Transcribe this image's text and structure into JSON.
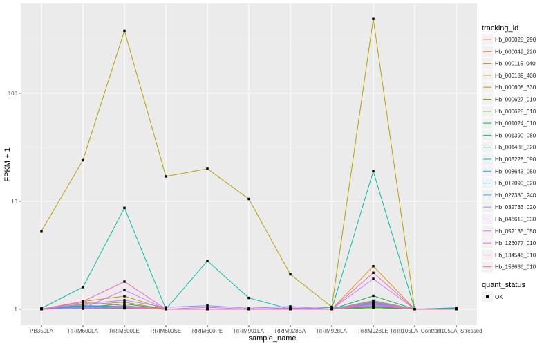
{
  "chart_data": {
    "type": "line",
    "xlabel": "sample_name",
    "ylabel": "FPKM + 1",
    "yscale": "log10",
    "ylim": [
      0.71,
      680
    ],
    "yticks": [
      1,
      10,
      100
    ],
    "ytick_labels": [
      "1",
      "10",
      "100"
    ],
    "categories": [
      "PB350LA",
      "RRIM600LA",
      "RRIM600LE",
      "RRIM600SE",
      "RRIM600PE",
      "RRIM901LA",
      "RRIM928BA",
      "RRIM928LA",
      "RRIM928LE",
      "RRII105LA_Control",
      "RRII105LA_Stressed"
    ],
    "legend_title": "tracking_id",
    "legend_position": "right",
    "shape_legend_title": "quant_status",
    "shape_legend_items": [
      "OK"
    ],
    "series": [
      {
        "name": "Hb_000028_290",
        "color": "#F8766D",
        "values": [
          1.0,
          1.05,
          1.04,
          1.0,
          1.0,
          1.0,
          1.02,
          1.0,
          1.12,
          1.0,
          1.0
        ]
      },
      {
        "name": "Hb_000049_220",
        "color": "#EA8331",
        "values": [
          1.0,
          1.1,
          1.16,
          1.0,
          1.0,
          1.0,
          1.0,
          1.0,
          1.2,
          1.0,
          1.0
        ]
      },
      {
        "name": "Hb_000115_040",
        "color": "#D89000",
        "values": [
          1.0,
          1.18,
          1.32,
          1.0,
          1.0,
          1.0,
          1.0,
          1.0,
          2.5,
          1.0,
          1.0
        ]
      },
      {
        "name": "Hb_000189_400",
        "color": "#C09B00",
        "values": [
          1.0,
          1.03,
          1.03,
          1.0,
          1.0,
          1.0,
          1.0,
          1.0,
          1.08,
          1.0,
          1.0
        ]
      },
      {
        "name": "Hb_000608_330",
        "color": "#B8A000",
        "values": [
          5.3,
          24,
          380,
          17,
          20,
          10.5,
          2.1,
          1.05,
          490,
          1.0,
          1.0
        ]
      },
      {
        "name": "Hb_000627_010",
        "color": "#7CAE00",
        "values": [
          1.0,
          1.02,
          1.02,
          1.0,
          1.0,
          1.0,
          1.0,
          1.0,
          1.04,
          1.0,
          1.0
        ]
      },
      {
        "name": "Hb_000628_010",
        "color": "#39B600",
        "values": [
          1.0,
          1.01,
          1.02,
          1.0,
          1.0,
          1.0,
          1.0,
          1.0,
          1.03,
          1.0,
          1.0
        ]
      },
      {
        "name": "Hb_001024_010",
        "color": "#00BB4E",
        "values": [
          1.0,
          1.04,
          1.12,
          1.0,
          1.0,
          1.0,
          1.0,
          1.0,
          1.33,
          1.0,
          1.0
        ]
      },
      {
        "name": "Hb_001390_080",
        "color": "#00BF7D",
        "values": [
          1.0,
          1.02,
          1.03,
          1.0,
          1.0,
          1.0,
          1.0,
          1.0,
          1.06,
          1.0,
          1.0
        ]
      },
      {
        "name": "Hb_001488_320",
        "color": "#00C1A3",
        "values": [
          1.02,
          1.6,
          8.7,
          1.0,
          2.8,
          1.27,
          1.0,
          1.0,
          19,
          1.0,
          1.03
        ]
      },
      {
        "name": "Hb_003228_090",
        "color": "#00BFC4",
        "values": [
          1.01,
          1.08,
          1.06,
          1.0,
          1.0,
          1.0,
          1.0,
          1.04,
          1.1,
          1.0,
          1.02
        ]
      },
      {
        "name": "Hb_008643_050",
        "color": "#00BAE0",
        "values": [
          1.0,
          1.06,
          1.05,
          1.0,
          1.0,
          1.0,
          1.0,
          1.0,
          1.14,
          1.0,
          1.0
        ]
      },
      {
        "name": "Hb_012090_020",
        "color": "#00B0F6",
        "values": [
          1.0,
          1.07,
          1.04,
          1.0,
          1.0,
          1.0,
          1.0,
          1.0,
          1.16,
          1.0,
          1.0
        ]
      },
      {
        "name": "Hb_027380_240",
        "color": "#35A2FF",
        "values": [
          1.0,
          1.04,
          1.05,
          1.0,
          1.0,
          1.0,
          1.0,
          1.0,
          1.12,
          1.0,
          1.0
        ]
      },
      {
        "name": "Hb_032733_020",
        "color": "#9590FF",
        "values": [
          1.0,
          1.12,
          1.21,
          1.04,
          1.08,
          1.02,
          1.06,
          1.0,
          1.18,
          1.0,
          1.0
        ]
      },
      {
        "name": "Hb_046615_030",
        "color": "#C77CFF",
        "values": [
          1.0,
          1.02,
          1.5,
          1.0,
          1.04,
          1.0,
          1.03,
          1.0,
          1.91,
          1.0,
          1.0
        ]
      },
      {
        "name": "Hb_052135_050",
        "color": "#E76BF3",
        "values": [
          1.0,
          1.03,
          1.05,
          1.0,
          1.0,
          1.0,
          1.0,
          1.0,
          1.1,
          1.0,
          1.0
        ]
      },
      {
        "name": "Hb_126077_010",
        "color": "#FA62DB",
        "values": [
          1.0,
          1.02,
          1.03,
          1.0,
          1.0,
          1.0,
          1.0,
          1.0,
          1.08,
          1.0,
          1.0
        ]
      },
      {
        "name": "Hb_134546_010",
        "color": "#FF62BC",
        "values": [
          1.0,
          1.18,
          1.8,
          1.0,
          1.0,
          1.0,
          1.0,
          1.0,
          2.17,
          1.0,
          1.0
        ]
      },
      {
        "name": "Hb_153636_010",
        "color": "#FF6C91",
        "values": [
          1.0,
          1.15,
          1.08,
          1.0,
          1.0,
          1.0,
          1.0,
          1.0,
          1.14,
          1.0,
          1.0
        ]
      }
    ]
  }
}
